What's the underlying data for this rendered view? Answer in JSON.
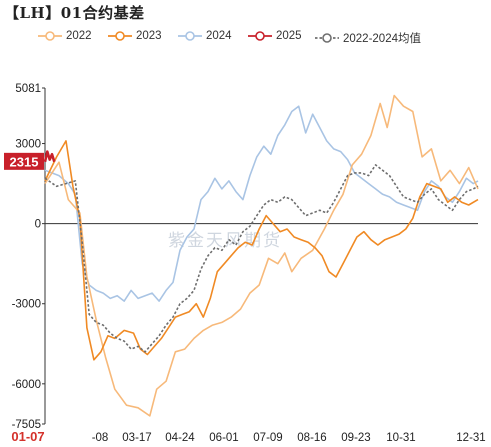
{
  "chart_data": {
    "type": "line",
    "title": "【LH】01合约基差",
    "watermark": "紫金天风期货",
    "x_range": [
      "01-07",
      "12-31"
    ],
    "x_ticks": [
      "01-07",
      "-08",
      "03-17",
      "04-24",
      "06-01",
      "07-09",
      "08-16",
      "09-23",
      "10-31",
      "12-31"
    ],
    "y_ticks": [
      5081,
      3000,
      0,
      -3000,
      -6000,
      -7505
    ],
    "ylim": [
      -7505,
      5081
    ],
    "last_value_label": "2315",
    "series": [
      {
        "name": "2022",
        "color": "#f7b97a",
        "points": [
          [
            0,
            1500
          ],
          [
            6,
            2300
          ],
          [
            10,
            900
          ],
          [
            15,
            400
          ],
          [
            18,
            -2000
          ],
          [
            22,
            -3600
          ],
          [
            26,
            -5000
          ],
          [
            30,
            -6200
          ],
          [
            35,
            -6800
          ],
          [
            40,
            -6900
          ],
          [
            45,
            -7200
          ],
          [
            48,
            -6200
          ],
          [
            52,
            -5900
          ],
          [
            56,
            -4800
          ],
          [
            60,
            -4700
          ],
          [
            64,
            -4300
          ],
          [
            68,
            -4000
          ],
          [
            72,
            -3800
          ],
          [
            76,
            -3700
          ],
          [
            80,
            -3500
          ],
          [
            84,
            -3200
          ],
          [
            88,
            -2600
          ],
          [
            92,
            -2300
          ],
          [
            96,
            -1300
          ],
          [
            100,
            -1500
          ],
          [
            103,
            -1100
          ],
          [
            106,
            -1800
          ],
          [
            110,
            -1300
          ],
          [
            115,
            -1000
          ],
          [
            120,
            -200
          ],
          [
            124,
            500
          ],
          [
            128,
            1100
          ],
          [
            132,
            2200
          ],
          [
            136,
            2600
          ],
          [
            140,
            3300
          ],
          [
            144,
            4500
          ],
          [
            147,
            3600
          ],
          [
            150,
            4800
          ],
          [
            154,
            4400
          ],
          [
            158,
            4200
          ],
          [
            162,
            2500
          ],
          [
            166,
            2800
          ],
          [
            170,
            1600
          ],
          [
            174,
            2000
          ],
          [
            178,
            1500
          ],
          [
            182,
            2100
          ],
          [
            186,
            1300
          ]
        ]
      },
      {
        "name": "2023",
        "color": "#f08a24",
        "points": [
          [
            0,
            1600
          ],
          [
            5,
            2500
          ],
          [
            9,
            3100
          ],
          [
            12,
            1400
          ],
          [
            15,
            200
          ],
          [
            18,
            -3900
          ],
          [
            21,
            -5100
          ],
          [
            24,
            -4800
          ],
          [
            27,
            -4200
          ],
          [
            30,
            -4300
          ],
          [
            34,
            -4000
          ],
          [
            38,
            -4100
          ],
          [
            41,
            -4700
          ],
          [
            44,
            -4900
          ],
          [
            47,
            -4600
          ],
          [
            50,
            -4300
          ],
          [
            53,
            -3900
          ],
          [
            56,
            -3500
          ],
          [
            59,
            -3400
          ],
          [
            62,
            -3300
          ],
          [
            65,
            -3000
          ],
          [
            68,
            -3500
          ],
          [
            71,
            -2800
          ],
          [
            74,
            -1800
          ],
          [
            77,
            -1500
          ],
          [
            80,
            -1200
          ],
          [
            83,
            -900
          ],
          [
            86,
            -700
          ],
          [
            89,
            -800
          ],
          [
            92,
            -200
          ],
          [
            95,
            300
          ],
          [
            98,
            0
          ],
          [
            101,
            -300
          ],
          [
            104,
            -200
          ],
          [
            107,
            -500
          ],
          [
            110,
            -600
          ],
          [
            113,
            -700
          ],
          [
            116,
            -900
          ],
          [
            119,
            -1200
          ],
          [
            122,
            -1800
          ],
          [
            125,
            -2000
          ],
          [
            128,
            -1500
          ],
          [
            131,
            -1000
          ],
          [
            134,
            -500
          ],
          [
            137,
            -300
          ],
          [
            140,
            -600
          ],
          [
            143,
            -800
          ],
          [
            146,
            -600
          ],
          [
            149,
            -500
          ],
          [
            152,
            -400
          ],
          [
            155,
            -200
          ],
          [
            158,
            200
          ],
          [
            161,
            1000
          ],
          [
            164,
            1500
          ],
          [
            167,
            1400
          ],
          [
            170,
            1300
          ],
          [
            173,
            800
          ],
          [
            176,
            1000
          ],
          [
            179,
            800
          ],
          [
            182,
            700
          ],
          [
            186,
            900
          ]
        ]
      },
      {
        "name": "2024",
        "color": "#a9c4e4",
        "points": [
          [
            0,
            2000
          ],
          [
            6,
            1800
          ],
          [
            10,
            1500
          ],
          [
            13,
            1100
          ],
          [
            16,
            -1500
          ],
          [
            19,
            -2300
          ],
          [
            22,
            -2500
          ],
          [
            25,
            -2600
          ],
          [
            28,
            -2800
          ],
          [
            31,
            -2700
          ],
          [
            34,
            -2900
          ],
          [
            37,
            -2500
          ],
          [
            40,
            -2800
          ],
          [
            43,
            -2700
          ],
          [
            46,
            -2600
          ],
          [
            49,
            -2900
          ],
          [
            52,
            -2500
          ],
          [
            55,
            -2200
          ],
          [
            58,
            -1000
          ],
          [
            61,
            -500
          ],
          [
            64,
            -200
          ],
          [
            67,
            900
          ],
          [
            70,
            1200
          ],
          [
            73,
            1700
          ],
          [
            76,
            1300
          ],
          [
            79,
            1600
          ],
          [
            82,
            1200
          ],
          [
            85,
            900
          ],
          [
            88,
            1800
          ],
          [
            91,
            2500
          ],
          [
            94,
            2900
          ],
          [
            97,
            2600
          ],
          [
            100,
            3300
          ],
          [
            103,
            3700
          ],
          [
            106,
            4200
          ],
          [
            109,
            4400
          ],
          [
            112,
            3400
          ],
          [
            115,
            4100
          ],
          [
            118,
            3600
          ],
          [
            121,
            3100
          ],
          [
            124,
            2800
          ],
          [
            127,
            2700
          ],
          [
            130,
            2400
          ],
          [
            133,
            1900
          ],
          [
            136,
            1700
          ],
          [
            139,
            1500
          ],
          [
            142,
            1300
          ],
          [
            145,
            1100
          ],
          [
            148,
            1000
          ],
          [
            151,
            800
          ],
          [
            154,
            700
          ],
          [
            157,
            600
          ],
          [
            160,
            500
          ],
          [
            163,
            1200
          ],
          [
            166,
            1600
          ],
          [
            169,
            1400
          ],
          [
            172,
            1000
          ],
          [
            175,
            800
          ],
          [
            178,
            1200
          ],
          [
            181,
            1700
          ],
          [
            184,
            1500
          ],
          [
            186,
            1600
          ]
        ]
      },
      {
        "name": "2025",
        "color": "#c8202a",
        "points": [
          [
            0,
            2315
          ],
          [
            1,
            2700
          ],
          [
            2,
            2400
          ],
          [
            3,
            2600
          ],
          [
            4,
            2315
          ]
        ]
      },
      {
        "name": "2022-2024均值",
        "color": "#6e6e6e",
        "dashed": true,
        "points": [
          [
            0,
            1700
          ],
          [
            5,
            1400
          ],
          [
            9,
            1500
          ],
          [
            13,
            1600
          ],
          [
            16,
            -700
          ],
          [
            19,
            -3400
          ],
          [
            22,
            -3700
          ],
          [
            25,
            -3800
          ],
          [
            28,
            -4100
          ],
          [
            31,
            -4300
          ],
          [
            34,
            -4400
          ],
          [
            37,
            -4700
          ],
          [
            40,
            -4600
          ],
          [
            43,
            -4800
          ],
          [
            46,
            -4500
          ],
          [
            49,
            -4200
          ],
          [
            52,
            -3800
          ],
          [
            55,
            -3500
          ],
          [
            58,
            -3000
          ],
          [
            61,
            -2800
          ],
          [
            64,
            -2500
          ],
          [
            67,
            -1700
          ],
          [
            70,
            -1200
          ],
          [
            73,
            -900
          ],
          [
            76,
            -1000
          ],
          [
            79,
            -600
          ],
          [
            82,
            -800
          ],
          [
            85,
            -300
          ],
          [
            88,
            -100
          ],
          [
            91,
            300
          ],
          [
            94,
            700
          ],
          [
            97,
            900
          ],
          [
            100,
            800
          ],
          [
            103,
            1000
          ],
          [
            106,
            900
          ],
          [
            109,
            600
          ],
          [
            112,
            300
          ],
          [
            115,
            400
          ],
          [
            118,
            500
          ],
          [
            121,
            400
          ],
          [
            124,
            800
          ],
          [
            127,
            1300
          ],
          [
            130,
            1800
          ],
          [
            133,
            1900
          ],
          [
            136,
            1900
          ],
          [
            139,
            1800
          ],
          [
            142,
            2200
          ],
          [
            145,
            2000
          ],
          [
            148,
            1800
          ],
          [
            151,
            1400
          ],
          [
            154,
            1000
          ],
          [
            157,
            900
          ],
          [
            160,
            800
          ],
          [
            163,
            1100
          ],
          [
            166,
            1300
          ],
          [
            169,
            900
          ],
          [
            172,
            700
          ],
          [
            175,
            500
          ],
          [
            178,
            900
          ],
          [
            181,
            1200
          ],
          [
            184,
            1300
          ],
          [
            186,
            1400
          ]
        ]
      }
    ]
  }
}
